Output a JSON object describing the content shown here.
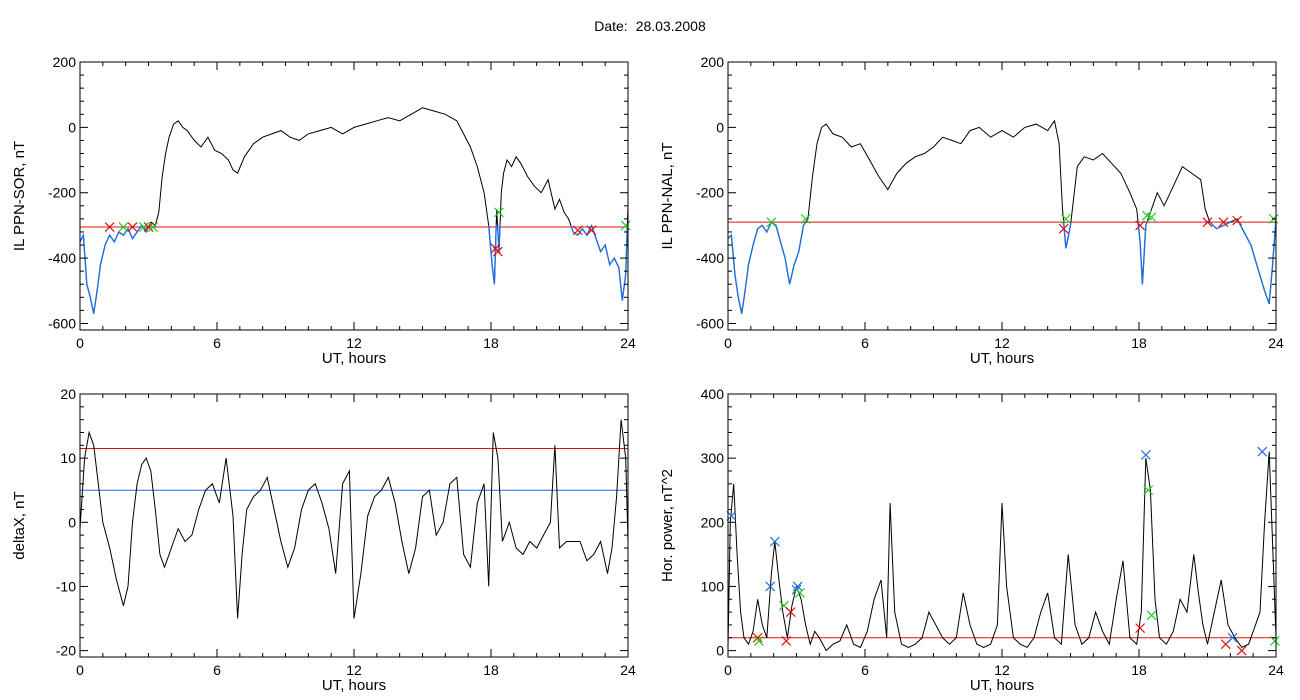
{
  "title": {
    "label": "Date:",
    "value": "28.03.2008"
  },
  "colors": {
    "data": "#000000",
    "highlight": "#1f6fe0",
    "threshold_red": "#e01010",
    "threshold_blue": "#1f6fe0",
    "marker_red": "#e01010",
    "marker_green": "#22cc22",
    "marker_blue": "#1f6fe0"
  },
  "chart_data": [
    {
      "type": "line",
      "ylabel": "IL PPN-SOR, nT",
      "xlabel": "UT, hours",
      "xlim": [
        0,
        24
      ],
      "ylim": [
        -620,
        200
      ],
      "xticks": [
        0,
        6,
        12,
        18,
        24
      ],
      "yticks": [
        200,
        0,
        -200,
        -400,
        -600
      ],
      "threshold_lines": [
        {
          "y": -305,
          "color": "red"
        }
      ],
      "highlight_below": -300,
      "series": [
        {
          "x": [
            0,
            0.15,
            0.3,
            0.45,
            0.6,
            0.75,
            0.9,
            1.1,
            1.3,
            1.5,
            1.7,
            1.9,
            2.1,
            2.3,
            2.5,
            2.7,
            2.9,
            3.1,
            3.3,
            3.45,
            3.6,
            3.75,
            3.9,
            4.1,
            4.3,
            4.5,
            4.7,
            5.0,
            5.3,
            5.6,
            5.9,
            6.2,
            6.5,
            6.7,
            6.9,
            7.2,
            7.6,
            8.0,
            8.4,
            8.8,
            9.2,
            9.6,
            10,
            10.5,
            11,
            11.5,
            12,
            12.5,
            13,
            13.5,
            14,
            14.5,
            15,
            15.5,
            16,
            16.5,
            16.8,
            17.1,
            17.4,
            17.7,
            17.9,
            18.05,
            18.15,
            18.25,
            18.35,
            18.45,
            18.55,
            18.7,
            18.9,
            19.1,
            19.3,
            19.6,
            19.9,
            20.2,
            20.5,
            20.8,
            21.0,
            21.2,
            21.4,
            21.6,
            21.8,
            22.0,
            22.2,
            22.4,
            22.6,
            22.8,
            23.0,
            23.2,
            23.4,
            23.6,
            23.75,
            23.9,
            24
          ],
          "y": [
            -350,
            -330,
            -480,
            -520,
            -570,
            -500,
            -420,
            -360,
            -330,
            -350,
            -320,
            -330,
            -310,
            -340,
            -320,
            -300,
            -320,
            -290,
            -300,
            -260,
            -150,
            -80,
            -30,
            10,
            20,
            0,
            -10,
            -40,
            -60,
            -30,
            -70,
            -80,
            -100,
            -130,
            -140,
            -90,
            -50,
            -30,
            -20,
            -10,
            -30,
            -40,
            -20,
            -10,
            0,
            -20,
            0,
            10,
            20,
            30,
            20,
            40,
            60,
            50,
            40,
            20,
            -20,
            -60,
            -120,
            -200,
            -300,
            -420,
            -480,
            -250,
            -380,
            -200,
            -140,
            -100,
            -120,
            -90,
            -110,
            -150,
            -180,
            -200,
            -160,
            -250,
            -220,
            -260,
            -280,
            -320,
            -330,
            -310,
            -330,
            -300,
            -340,
            -380,
            -360,
            -420,
            -400,
            -430,
            -530,
            -450,
            -240
          ]
        }
      ],
      "markers": [
        {
          "x": 1.3,
          "y": -305,
          "color": "red"
        },
        {
          "x": 1.9,
          "y": -305,
          "color": "green"
        },
        {
          "x": 2.3,
          "y": -305,
          "color": "red"
        },
        {
          "x": 2.8,
          "y": -305,
          "color": "green"
        },
        {
          "x": 3.0,
          "y": -305,
          "color": "red"
        },
        {
          "x": 3.2,
          "y": -305,
          "color": "green"
        },
        {
          "x": 18.2,
          "y": -370,
          "color": "red"
        },
        {
          "x": 18.35,
          "y": -260,
          "color": "green"
        },
        {
          "x": 18.3,
          "y": -380,
          "color": "red"
        },
        {
          "x": 21.8,
          "y": -315,
          "color": "red"
        },
        {
          "x": 22.4,
          "y": -315,
          "color": "red"
        },
        {
          "x": 23.9,
          "y": -300,
          "color": "green"
        }
      ]
    },
    {
      "type": "line",
      "ylabel": "IL PPN-NAL, nT",
      "xlabel": "UT, hours",
      "xlim": [
        0,
        24
      ],
      "ylim": [
        -620,
        200
      ],
      "xticks": [
        0,
        6,
        12,
        18,
        24
      ],
      "yticks": [
        200,
        0,
        -200,
        -400,
        -600
      ],
      "threshold_lines": [
        {
          "y": -290,
          "color": "red"
        }
      ],
      "highlight_below": -290,
      "series": [
        {
          "x": [
            0,
            0.15,
            0.3,
            0.45,
            0.6,
            0.75,
            0.9,
            1.1,
            1.3,
            1.5,
            1.7,
            1.9,
            2.1,
            2.3,
            2.5,
            2.7,
            2.9,
            3.1,
            3.3,
            3.5,
            3.7,
            3.9,
            4.1,
            4.3,
            4.6,
            5.0,
            5.4,
            5.8,
            6.2,
            6.6,
            7.0,
            7.4,
            7.8,
            8.2,
            8.6,
            9.0,
            9.4,
            9.8,
            10.2,
            10.6,
            11,
            11.5,
            12,
            12.5,
            13,
            13.5,
            14,
            14.3,
            14.5,
            14.65,
            14.8,
            15.0,
            15.3,
            15.6,
            16.0,
            16.4,
            16.8,
            17.2,
            17.6,
            17.9,
            18.05,
            18.15,
            18.3,
            18.5,
            18.8,
            19.1,
            19.5,
            19.9,
            20.3,
            20.7,
            20.9,
            21.1,
            21.4,
            21.7,
            22.0,
            22.3,
            22.6,
            22.9,
            23.2,
            23.5,
            23.7,
            23.85,
            24
          ],
          "y": [
            -340,
            -330,
            -450,
            -520,
            -570,
            -500,
            -420,
            -360,
            -310,
            -300,
            -320,
            -290,
            -300,
            -350,
            -400,
            -480,
            -420,
            -380,
            -300,
            -280,
            -150,
            -50,
            0,
            10,
            -20,
            -30,
            -60,
            -50,
            -100,
            -150,
            -190,
            -140,
            -110,
            -90,
            -80,
            -60,
            -30,
            -40,
            -50,
            -10,
            0,
            -30,
            -10,
            -30,
            0,
            10,
            -10,
            20,
            -50,
            -250,
            -370,
            -300,
            -120,
            -90,
            -100,
            -80,
            -110,
            -140,
            -200,
            -250,
            -350,
            -480,
            -300,
            -260,
            -200,
            -240,
            -180,
            -120,
            -140,
            -160,
            -250,
            -290,
            -310,
            -300,
            -290,
            -280,
            -320,
            -360,
            -430,
            -500,
            -540,
            -420,
            -280
          ]
        }
      ],
      "markers": [
        {
          "x": 1.9,
          "y": -290,
          "color": "green"
        },
        {
          "x": 3.4,
          "y": -280,
          "color": "green"
        },
        {
          "x": 14.7,
          "y": -310,
          "color": "red"
        },
        {
          "x": 14.8,
          "y": -280,
          "color": "green"
        },
        {
          "x": 18.05,
          "y": -300,
          "color": "red"
        },
        {
          "x": 18.35,
          "y": -270,
          "color": "green"
        },
        {
          "x": 18.55,
          "y": -275,
          "color": "green"
        },
        {
          "x": 21.0,
          "y": -290,
          "color": "red"
        },
        {
          "x": 21.7,
          "y": -290,
          "color": "red"
        },
        {
          "x": 22.3,
          "y": -285,
          "color": "red"
        },
        {
          "x": 23.9,
          "y": -280,
          "color": "green"
        }
      ]
    },
    {
      "type": "line",
      "ylabel": "deltaX, nT",
      "xlabel": "UT, hours",
      "xlim": [
        0,
        24
      ],
      "ylim": [
        -21,
        20
      ],
      "xticks": [
        0,
        6,
        12,
        18,
        24
      ],
      "yticks": [
        20,
        10,
        0,
        -10,
        -20
      ],
      "threshold_lines": [
        {
          "y": 11.5,
          "color": "red"
        },
        {
          "y": 5,
          "color": "blue"
        }
      ],
      "series": [
        {
          "x": [
            0,
            0.2,
            0.4,
            0.6,
            0.8,
            1.0,
            1.3,
            1.6,
            1.9,
            2.1,
            2.3,
            2.5,
            2.7,
            2.9,
            3.1,
            3.3,
            3.5,
            3.7,
            3.9,
            4.1,
            4.3,
            4.6,
            4.9,
            5.2,
            5.5,
            5.8,
            6.1,
            6.4,
            6.7,
            6.9,
            7.1,
            7.3,
            7.6,
            7.9,
            8.2,
            8.5,
            8.8,
            9.1,
            9.4,
            9.7,
            10,
            10.3,
            10.6,
            10.9,
            11.2,
            11.5,
            11.8,
            12.0,
            12.3,
            12.6,
            12.9,
            13.2,
            13.5,
            13.8,
            14.1,
            14.4,
            14.7,
            15.0,
            15.3,
            15.6,
            15.9,
            16.2,
            16.5,
            16.8,
            17.1,
            17.4,
            17.7,
            17.9,
            18.1,
            18.3,
            18.5,
            18.8,
            19.1,
            19.4,
            19.7,
            20.0,
            20.3,
            20.6,
            20.8,
            21.0,
            21.3,
            21.6,
            21.9,
            22.2,
            22.5,
            22.8,
            23.1,
            23.3,
            23.5,
            23.7,
            23.9,
            24
          ],
          "y": [
            -1,
            10,
            14,
            12,
            6,
            0,
            -4,
            -9,
            -13,
            -10,
            0,
            6,
            9,
            10,
            8,
            2,
            -5,
            -7,
            -5,
            -3,
            -1,
            -3,
            -2,
            2,
            5,
            6,
            3,
            10,
            1,
            -15,
            -5,
            2,
            4,
            5,
            7,
            2,
            -3,
            -7,
            -4,
            2,
            5,
            6,
            3,
            -1,
            -8,
            6,
            8,
            -15,
            -8,
            1,
            4,
            5,
            7,
            3,
            -3,
            -8,
            -4,
            4,
            5,
            -2,
            0,
            6,
            7,
            -5,
            -7,
            3,
            6,
            -10,
            14,
            10,
            -3,
            0,
            -4,
            -5,
            -3,
            -4,
            -2,
            0,
            12,
            -4,
            -3,
            -3,
            -3,
            -6,
            -5,
            -3,
            -8,
            -4,
            4,
            16,
            10,
            -3
          ]
        }
      ]
    },
    {
      "type": "line",
      "ylabel": "Hor. power, nT^2",
      "xlabel": "UT, hours",
      "xlim": [
        0,
        24
      ],
      "ylim": [
        -10,
        400
      ],
      "xticks": [
        0,
        6,
        12,
        18,
        24
      ],
      "yticks": [
        400,
        300,
        200,
        100,
        0
      ],
      "threshold_lines": [
        {
          "y": 20,
          "color": "red"
        }
      ],
      "series": [
        {
          "x": [
            0,
            0.1,
            0.25,
            0.4,
            0.55,
            0.7,
            0.9,
            1.1,
            1.3,
            1.5,
            1.7,
            1.9,
            2.05,
            2.2,
            2.4,
            2.6,
            2.8,
            3.0,
            3.2,
            3.4,
            3.6,
            3.8,
            4.0,
            4.3,
            4.6,
            4.9,
            5.2,
            5.5,
            5.8,
            6.1,
            6.4,
            6.7,
            6.95,
            7.1,
            7.3,
            7.6,
            7.9,
            8.2,
            8.5,
            8.8,
            9.1,
            9.4,
            9.7,
            10,
            10.3,
            10.6,
            10.9,
            11.2,
            11.5,
            11.8,
            12.0,
            12.2,
            12.5,
            12.8,
            13.1,
            13.4,
            13.7,
            14,
            14.3,
            14.6,
            14.9,
            15.2,
            15.5,
            15.8,
            16.1,
            16.4,
            16.7,
            17.0,
            17.3,
            17.6,
            17.9,
            18.1,
            18.3,
            18.5,
            18.7,
            18.9,
            19.2,
            19.5,
            19.8,
            20.1,
            20.4,
            20.6,
            20.8,
            21.0,
            21.3,
            21.6,
            21.9,
            22.2,
            22.5,
            22.8,
            23.1,
            23.3,
            23.5,
            23.7,
            23.9,
            24
          ],
          "y": [
            5,
            200,
            260,
            150,
            60,
            20,
            10,
            30,
            80,
            40,
            20,
            120,
            170,
            120,
            60,
            20,
            70,
            100,
            80,
            40,
            10,
            30,
            20,
            0,
            10,
            15,
            40,
            10,
            5,
            30,
            80,
            110,
            20,
            230,
            60,
            10,
            5,
            10,
            20,
            60,
            40,
            20,
            10,
            20,
            90,
            40,
            10,
            5,
            10,
            40,
            230,
            100,
            20,
            10,
            5,
            20,
            60,
            90,
            20,
            10,
            150,
            40,
            10,
            20,
            60,
            30,
            10,
            80,
            140,
            20,
            10,
            60,
            300,
            250,
            80,
            20,
            10,
            30,
            80,
            60,
            150,
            90,
            40,
            10,
            60,
            110,
            40,
            20,
            5,
            10,
            40,
            60,
            200,
            310,
            120,
            20
          ]
        }
      ],
      "markers": [
        {
          "x": 0.15,
          "y": 210,
          "color": "blue"
        },
        {
          "x": 1.3,
          "y": 20,
          "color": "red"
        },
        {
          "x": 1.35,
          "y": 15,
          "color": "green"
        },
        {
          "x": 1.85,
          "y": 100,
          "color": "blue"
        },
        {
          "x": 2.05,
          "y": 170,
          "color": "blue"
        },
        {
          "x": 2.45,
          "y": 70,
          "color": "green"
        },
        {
          "x": 2.55,
          "y": 15,
          "color": "red"
        },
        {
          "x": 2.75,
          "y": 60,
          "color": "red"
        },
        {
          "x": 3.0,
          "y": 95,
          "color": "blue"
        },
        {
          "x": 3.05,
          "y": 100,
          "color": "blue"
        },
        {
          "x": 3.15,
          "y": 90,
          "color": "green"
        },
        {
          "x": 18.05,
          "y": 35,
          "color": "red"
        },
        {
          "x": 18.3,
          "y": 305,
          "color": "blue"
        },
        {
          "x": 18.4,
          "y": 250,
          "color": "green"
        },
        {
          "x": 18.55,
          "y": 55,
          "color": "green"
        },
        {
          "x": 21.8,
          "y": 10,
          "color": "red"
        },
        {
          "x": 22.1,
          "y": 20,
          "color": "blue"
        },
        {
          "x": 22.5,
          "y": 0,
          "color": "red"
        },
        {
          "x": 23.4,
          "y": 310,
          "color": "blue"
        },
        {
          "x": 23.95,
          "y": 15,
          "color": "green"
        }
      ]
    }
  ]
}
